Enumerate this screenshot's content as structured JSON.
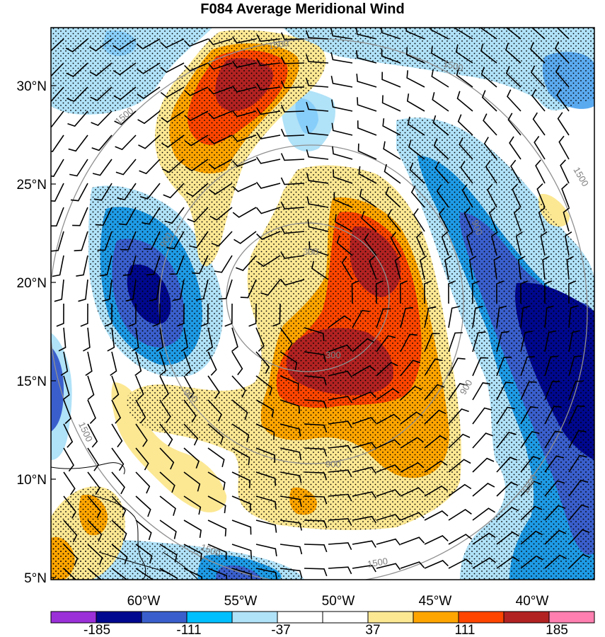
{
  "title": "F084 Average Meridional Wind",
  "lat_labels": [
    "30°N",
    "25°N",
    "20°N",
    "15°N",
    "10°N",
    "5°N"
  ],
  "lon_labels": [
    "60°W",
    "55°W",
    "50°W",
    "45°W",
    "40°W"
  ],
  "contour_labels": [
    "300",
    "300",
    "900",
    "900",
    "900",
    "900",
    "900",
    "1500",
    "1500",
    "1500",
    "1500",
    "1500",
    "1500"
  ],
  "colorbar": {
    "tick_labels": [
      "-185",
      "-111",
      "-37",
      "37",
      "111",
      "185"
    ],
    "colors": [
      "#9b30d9",
      "#00088f",
      "#3a5fcd",
      "#00bfff",
      "#b0e2f8",
      "#ffffff",
      "#ffffff",
      "#fce893",
      "#ffa500",
      "#ff4500",
      "#b22222",
      "#ff7fb0"
    ]
  },
  "palette": {
    "dark_blue": "#00088f",
    "blue": "#3a5fcd",
    "mid_blue": "#1e9be6",
    "light_blue": "#b0e2f8",
    "yellow": "#fce893",
    "orange": "#ffa500",
    "red_orange": "#ff4500",
    "dark_red": "#b22222",
    "contour_gray": "#909090"
  }
}
